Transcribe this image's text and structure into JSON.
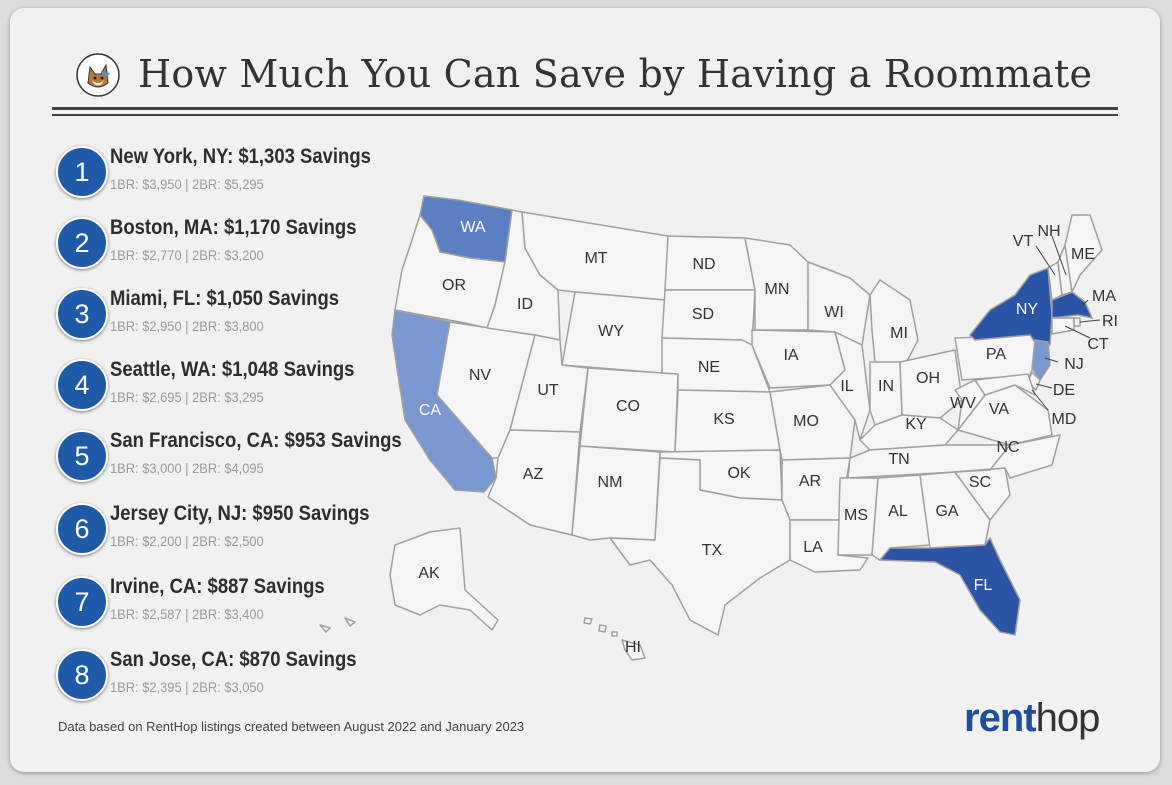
{
  "title": "How Much You Can Save by Having a Roommate",
  "rankings": [
    {
      "rank": "1",
      "title": "New York, NY: $1,303 Savings",
      "detail": "1BR: $3,950 | 2BR: $5,295"
    },
    {
      "rank": "2",
      "title": "Boston, MA: $1,170 Savings",
      "detail": "1BR: $2,770 | 2BR: $3,200"
    },
    {
      "rank": "3",
      "title": "Miami, FL: $1,050 Savings",
      "detail": "1BR: $2,950 | 2BR: $3,800"
    },
    {
      "rank": "4",
      "title": "Seattle, WA: $1,048 Savings",
      "detail": "1BR: $2,695 | 2BR: $3,295"
    },
    {
      "rank": "5",
      "title": "San Francisco, CA: $953 Savings",
      "detail": "1BR: $3,000 | 2BR: $4,095"
    },
    {
      "rank": "6",
      "title": "Jersey City, NJ: $950 Savings",
      "detail": "1BR: $2,200 | 2BR: $2,500"
    },
    {
      "rank": "7",
      "title": "Irvine, CA: $887 Savings",
      "detail": "1BR: $2,587 | 2BR: $3,400"
    },
    {
      "rank": "8",
      "title": "San Jose, CA: $870 Savings",
      "detail": "1BR: $2,395 | 2BR: $3,050"
    }
  ],
  "map": {
    "highlight_colors": {
      "dark": "#2b54a6",
      "medium": "#5b7fc2",
      "light": "#7a97cf"
    },
    "highlighted_states": [
      "NY",
      "MA",
      "FL",
      "WA",
      "CA",
      "NJ"
    ],
    "state_labels": {
      "WA": "WA",
      "OR": "OR",
      "CA": "CA",
      "NV": "NV",
      "ID": "ID",
      "MT": "MT",
      "WY": "WY",
      "UT": "UT",
      "AZ": "AZ",
      "CO": "CO",
      "NM": "NM",
      "ND": "ND",
      "SD": "SD",
      "NE": "NE",
      "KS": "KS",
      "OK": "OK",
      "TX": "TX",
      "MN": "MN",
      "IA": "IA",
      "MO": "MO",
      "AR": "AR",
      "LA": "LA",
      "WI": "WI",
      "IL": "IL",
      "MI": "MI",
      "IN": "IN",
      "OH": "OH",
      "KY": "KY",
      "TN": "TN",
      "MS": "MS",
      "AL": "AL",
      "GA": "GA",
      "FL": "FL",
      "SC": "SC",
      "NC": "NC",
      "VA": "VA",
      "WV": "WV",
      "PA": "PA",
      "NY": "NY",
      "VT": "VT",
      "NH": "NH",
      "ME": "ME",
      "MA": "MA",
      "RI": "RI",
      "CT": "CT",
      "NJ": "NJ",
      "DE": "DE",
      "MD": "MD",
      "AK": "AK",
      "HI": "HI"
    }
  },
  "footnote": "Data based on RentHop listings created between August 2022 and January 2023",
  "brand": {
    "part1": "rent",
    "part2": "hop"
  }
}
